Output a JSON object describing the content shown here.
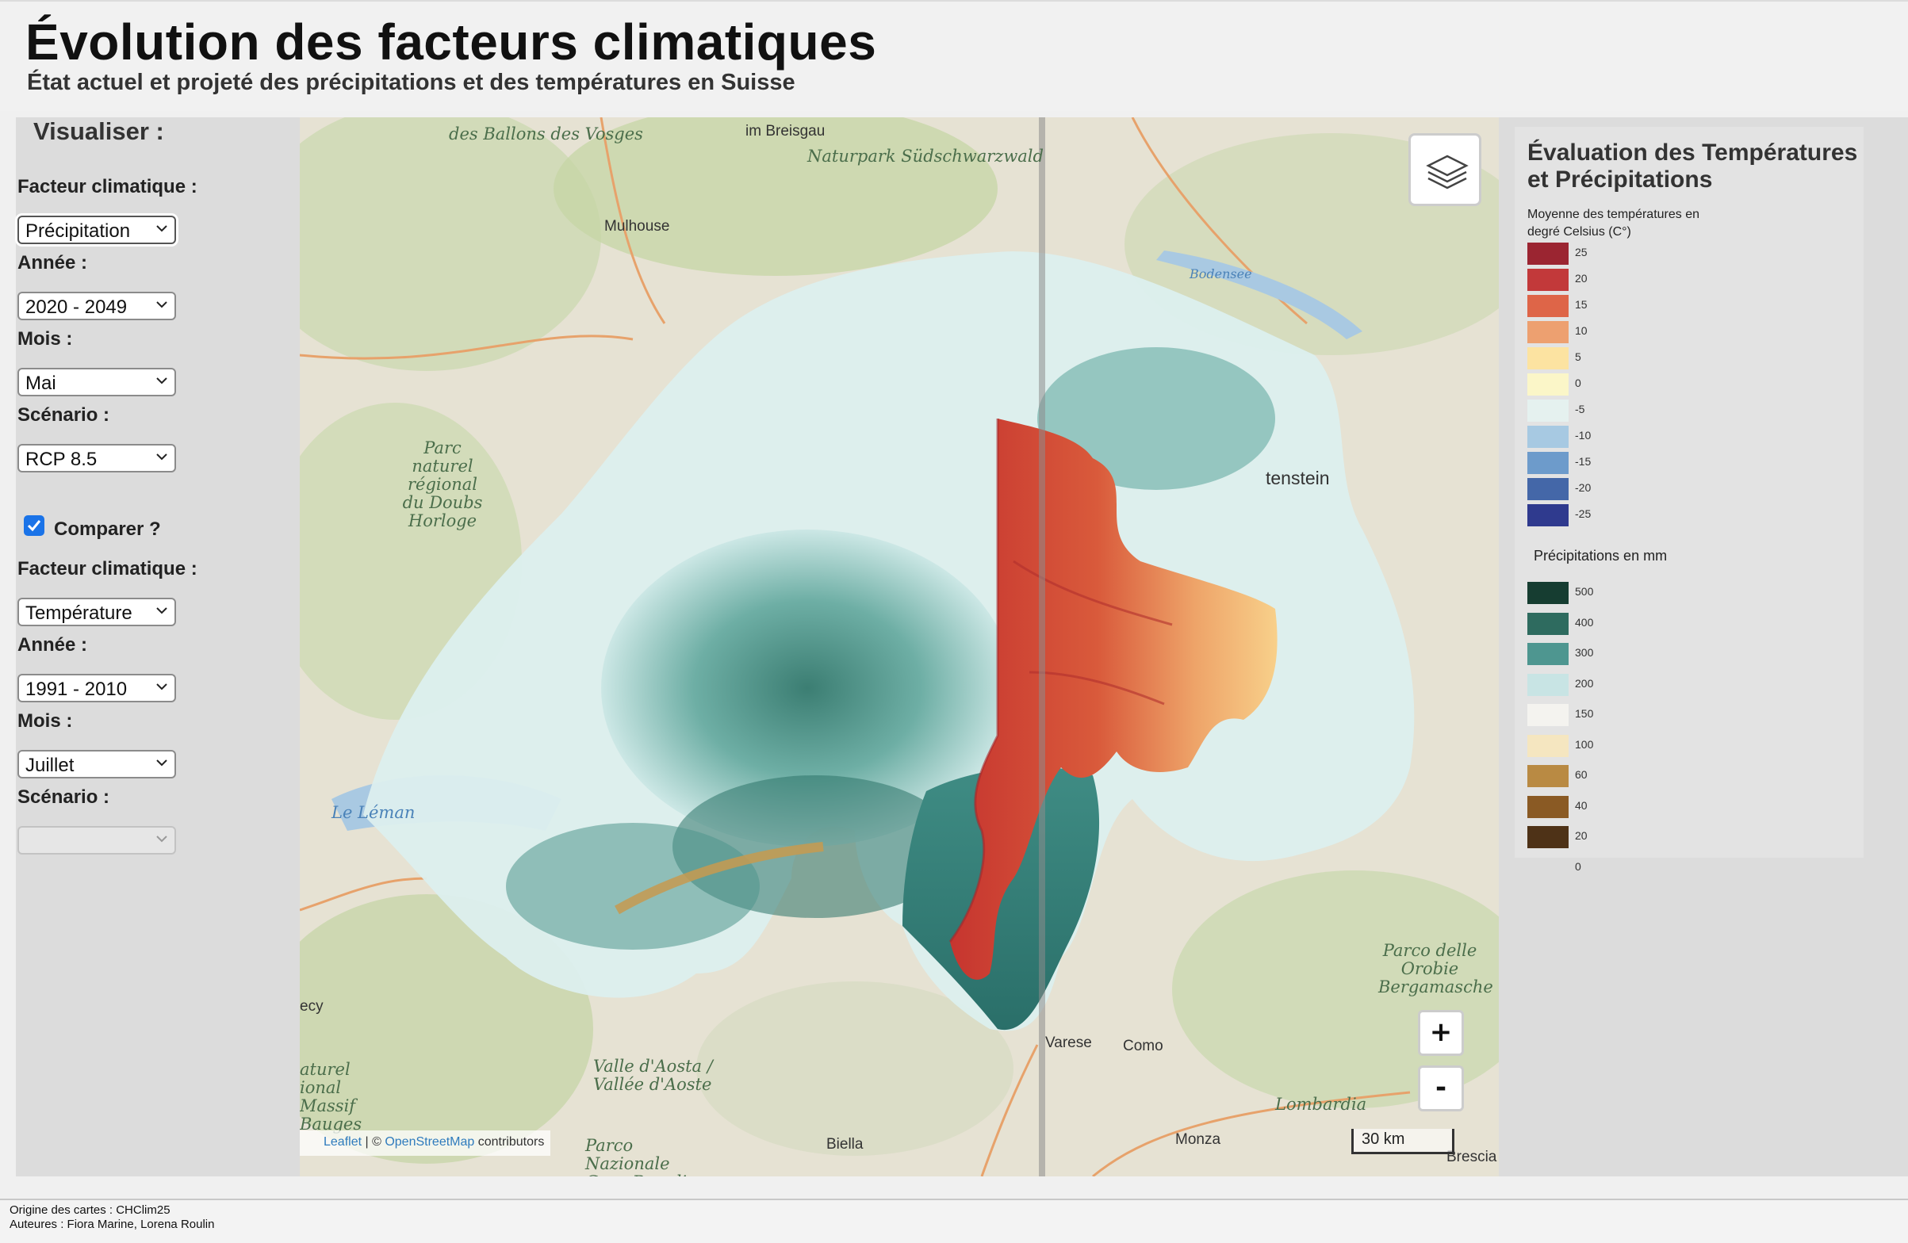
{
  "header": {
    "title": "Évolution des facteurs climatiques",
    "subtitle": "État actuel et projeté des précipitations et des températures en Suisse"
  },
  "sidebar": {
    "heading": "Visualiser :",
    "primary": {
      "factor_label": "Facteur climatique :",
      "factor_value": "Précipitation",
      "year_label": "Année :",
      "year_value": "2020 - 2049",
      "month_label": "Mois :",
      "month_value": "Mai",
      "scenario_label": "Scénario :",
      "scenario_value": "RCP 8.5"
    },
    "compare": {
      "label": "Comparer ?",
      "checked": true,
      "factor_label": "Facteur climatique :",
      "factor_value": "Température",
      "year_label": "Année :",
      "year_value": "1991 - 2010",
      "month_label": "Mois :",
      "month_value": "Juillet",
      "scenario_label": "Scénario :",
      "scenario_value": ""
    }
  },
  "map": {
    "labels": {
      "ballons": "des Ballons des Vosges",
      "breisgau": "im Breisgau",
      "naturpark": "Naturpark Südschwarzwald",
      "mulhouse": "Mulhouse",
      "bodensee": "Bodensee",
      "doubs": "Parc naturel régional du Doubs Horloge",
      "tenstein": "tenstein",
      "leman": "Le Léman",
      "orobie": "Parco delle Orobie Bergamasche",
      "varese": "Varese",
      "como": "Como",
      "aosta": "Valle d'Aosta / Vallée d'Aoste",
      "massif": "aturel ional Massif Bauges",
      "ecy": "ecy",
      "lombardia": "Lombardia",
      "biella": "Biella",
      "paradiso": "Parco Nazionale Gran Paradiso",
      "monza": "Monza",
      "brescia": "Brescia"
    },
    "zoom_in": "+",
    "zoom_out": "-",
    "scale": "30 km",
    "attribution": {
      "leaflet": "Leaflet",
      "sep": " | © ",
      "osm": "OpenStreetMap",
      "suffix": " contributors"
    },
    "layers_icon": "layers-icon"
  },
  "legend": {
    "title": "Évaluation des Températures et Précipitations",
    "temperature": {
      "subtitle": "Moyenne des températures en degré Celsius (C°)",
      "swatches": [
        "#9b2531",
        "#c2393a",
        "#de6548",
        "#eda070",
        "#fce3a1",
        "#fbf6c8",
        "#e5f1ef",
        "#a7c9e2",
        "#6d9bcb",
        "#4467a8",
        "#2f3a8e"
      ],
      "ticks": [
        "25",
        "20",
        "15",
        "10",
        "5",
        "0",
        "-5",
        "-10",
        "-15",
        "-20",
        "-25"
      ]
    },
    "precipitation": {
      "subtitle": "Précipitations en mm",
      "swatches": [
        "#163d31",
        "#2e6b5f",
        "#4e9690",
        "#c8e4e4",
        "#f4f3ef",
        "#f5e6c0",
        "#b98a43",
        "#8a5a24",
        "#4e3217"
      ],
      "ticks": [
        "500",
        "400",
        "300",
        "200",
        "150",
        "100",
        "60",
        "40",
        "20",
        "0"
      ]
    }
  },
  "footer": {
    "origin": "Origine des cartes : CHClim25",
    "authors": "Auteures : Fiora Marine, Lorena Roulin"
  }
}
